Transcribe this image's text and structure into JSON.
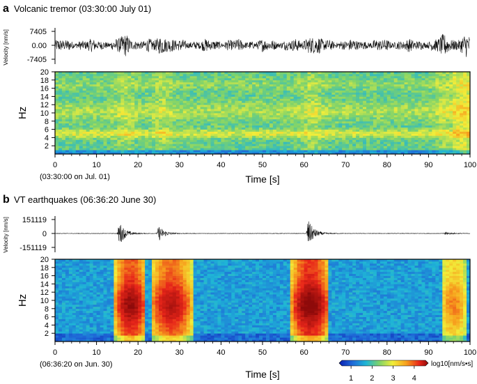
{
  "panels": [
    {
      "letter": "a",
      "title": "Volcanic tremor (03:30:00 July 01)",
      "start_note": "(03:30:00 on Jul. 01)",
      "velocity": {
        "ylabel": "Velocity [nm/s]",
        "ticks": [
          "7405",
          "0.00",
          "-7405"
        ]
      }
    },
    {
      "letter": "b",
      "title": "VT earthquakes (06:36:20 June 30)",
      "start_note": "(06:36:20 on Jun. 30)",
      "velocity": {
        "ylabel": "Velocity [nm/s]",
        "ticks": [
          "151119",
          "0",
          "-151119"
        ]
      }
    }
  ],
  "colorbar": {
    "label": "log10[nm/s•s]",
    "ticks": [
      "1",
      "2",
      "3",
      "4"
    ],
    "range": [
      0.5,
      4.6
    ]
  },
  "chart_data": [
    {
      "type": "line",
      "title": "Volcanic tremor (03:30:00 July 01)",
      "ylabel": "Velocity [nm/s]",
      "xlim": [
        0,
        100
      ],
      "ylim": [
        -7405,
        7405
      ],
      "yticks": [
        7405,
        0,
        -7405
      ],
      "series": [
        {
          "description_of_envelope_peaks_s": [
            17,
            26,
            62,
            94,
            99
          ]
        }
      ]
    },
    {
      "type": "heatmap",
      "xlabel": "Time [s]",
      "ylabel": "Hz",
      "xlim": [
        0,
        100
      ],
      "ylim": [
        0,
        20
      ],
      "xticks": [
        0,
        10,
        20,
        30,
        40,
        50,
        60,
        70,
        80,
        90,
        100
      ],
      "yticks": [
        2,
        4,
        6,
        8,
        10,
        12,
        14,
        16,
        18,
        20
      ],
      "strong_bands_hz": [
        [
          4,
          6
        ],
        [
          9,
          12
        ]
      ],
      "peak_log10": 3.2
    },
    {
      "type": "line",
      "title": "VT earthquakes (06:36:20 June 30)",
      "ylabel": "Velocity [nm/s]",
      "xlim": [
        0,
        100
      ],
      "ylim": [
        -151119,
        151119
      ],
      "yticks": [
        151119,
        0,
        -151119
      ],
      "events_s": [
        15.5,
        25,
        61,
        94
      ]
    },
    {
      "type": "heatmap",
      "xlabel": "Time [s]",
      "ylabel": "Hz",
      "xlim": [
        0,
        100
      ],
      "ylim": [
        0,
        20
      ],
      "xticks": [
        0,
        10,
        20,
        30,
        40,
        50,
        60,
        70,
        80,
        90,
        100
      ],
      "yticks": [
        2,
        4,
        6,
        8,
        10,
        12,
        14,
        16,
        18,
        20
      ],
      "event_windows_s": [
        [
          14.5,
          22
        ],
        [
          23,
          33
        ],
        [
          57,
          66
        ],
        [
          93,
          99
        ]
      ],
      "peak_log10": 4.3
    }
  ],
  "xaxis": {
    "label": "Time [s]",
    "ticks": [
      "0",
      "10",
      "20",
      "30",
      "40",
      "50",
      "60",
      "70",
      "80",
      "90",
      "100"
    ]
  },
  "yaxis": {
    "label": "Hz",
    "ticks": [
      "2",
      "4",
      "6",
      "8",
      "10",
      "12",
      "14",
      "16",
      "18",
      "20"
    ]
  }
}
